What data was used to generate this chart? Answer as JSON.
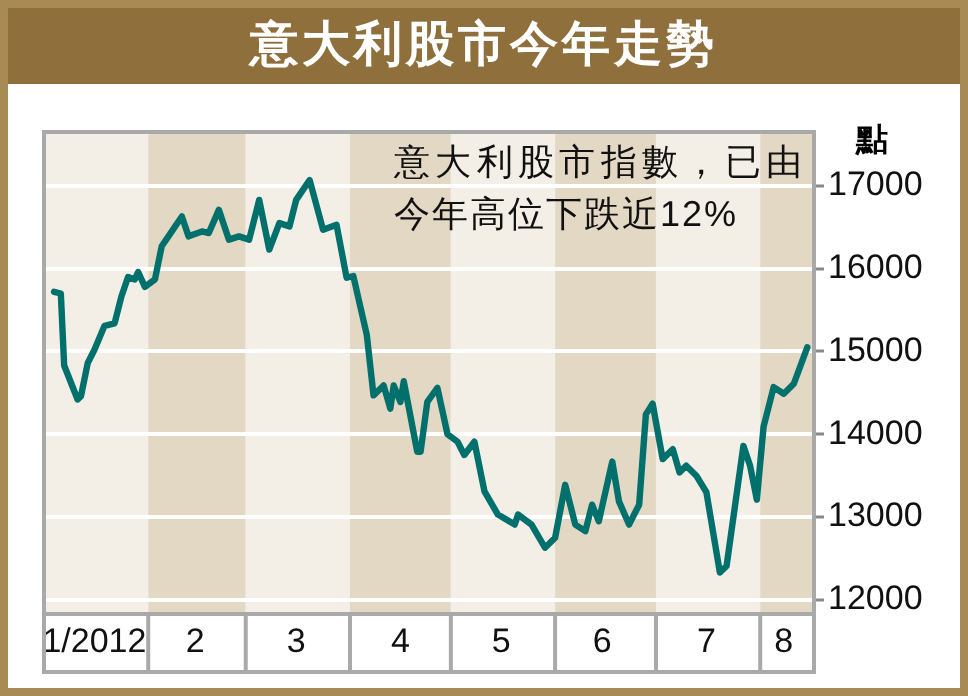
{
  "chart_data": {
    "type": "line",
    "title": "意大利股市今年走勢",
    "ylabel": "點",
    "annotations": [
      "意大利股市指數，已由今年高位下跌近12%"
    ],
    "x": [
      "2012-01-04",
      "2012-01-06",
      "2012-01-07",
      "2012-01-11",
      "2012-01-12",
      "2012-01-14",
      "2012-01-16",
      "2012-01-19",
      "2012-01-22",
      "2012-01-24",
      "2012-01-26",
      "2012-01-28",
      "2012-01-29",
      "2012-01-31",
      "2012-02-03",
      "2012-02-05",
      "2012-02-07",
      "2012-02-11",
      "2012-02-13",
      "2012-02-17",
      "2012-02-19",
      "2012-02-22",
      "2012-02-25",
      "2012-02-28",
      "2012-03-02",
      "2012-03-05",
      "2012-03-08",
      "2012-03-11",
      "2012-03-14",
      "2012-03-16",
      "2012-03-20",
      "2012-03-24",
      "2012-03-28",
      "2012-03-31",
      "2012-04-02",
      "2012-04-06",
      "2012-04-08",
      "2012-04-11",
      "2012-04-13",
      "2012-04-14",
      "2012-04-16",
      "2012-04-17",
      "2012-04-21",
      "2012-04-22",
      "2012-04-24",
      "2012-04-27",
      "2012-04-30",
      "2012-05-03",
      "2012-05-05",
      "2012-05-08",
      "2012-05-11",
      "2012-05-15",
      "2012-05-20",
      "2012-05-21",
      "2012-05-25",
      "2012-05-29",
      "2012-06-01",
      "2012-06-04",
      "2012-06-07",
      "2012-06-10",
      "2012-06-12",
      "2012-06-14",
      "2012-06-18",
      "2012-06-20",
      "2012-06-23",
      "2012-06-26",
      "2012-06-28",
      "2012-06-30",
      "2012-07-03",
      "2012-07-06",
      "2012-07-08",
      "2012-07-10",
      "2012-07-13",
      "2012-07-16",
      "2012-07-20",
      "2012-07-22",
      "2012-07-27",
      "2012-07-29",
      "2012-07-31",
      "2012-08-02",
      "2012-08-05",
      "2012-08-08",
      "2012-08-11",
      "2012-08-15"
    ],
    "values": [
      15720,
      15700,
      14830,
      14420,
      14460,
      14860,
      15020,
      15310,
      15340,
      15660,
      15900,
      15870,
      15960,
      15780,
      15870,
      16270,
      16390,
      16630,
      16390,
      16450,
      16430,
      16710,
      16350,
      16390,
      16350,
      16830,
      16230,
      16550,
      16510,
      16830,
      17070,
      16470,
      16530,
      15890,
      15910,
      15200,
      14470,
      14590,
      14310,
      14590,
      14390,
      14640,
      13790,
      13790,
      14390,
      14560,
      14000,
      13910,
      13750,
      13910,
      13310,
      13030,
      12910,
      13030,
      12910,
      12630,
      12750,
      13390,
      12910,
      12830,
      13150,
      12950,
      13670,
      13190,
      12910,
      13150,
      14240,
      14370,
      13700,
      13820,
      13540,
      13620,
      13500,
      13300,
      12330,
      12410,
      13860,
      13620,
      13210,
      14090,
      14570,
      14490,
      14610,
      15050
    ],
    "color": "#00706c",
    "marker": "none",
    "line_style": "solid",
    "xlim": [
      "2012-01-01",
      "2012-08-17"
    ],
    "xticks": [
      {
        "value": "2012-01-16",
        "label": "1/2012"
      },
      {
        "value": "2012-02-15",
        "label": "2"
      },
      {
        "value": "2012-03-16",
        "label": "3"
      },
      {
        "value": "2012-04-16",
        "label": "4"
      },
      {
        "value": "2012-05-16",
        "label": "5"
      },
      {
        "value": "2012-06-15",
        "label": "6"
      },
      {
        "value": "2012-07-16",
        "label": "7"
      },
      {
        "value": "2012-08-08",
        "label": "8"
      }
    ],
    "ylim": [
      11830,
      17650
    ],
    "yticks": [
      12000,
      13000,
      14000,
      15000,
      16000,
      17000
    ],
    "grid": "y",
    "bands": [
      {
        "axis": "x",
        "from": "2012-01-01",
        "to": "2012-02-01",
        "color": "#f3eee6"
      },
      {
        "axis": "x",
        "from": "2012-02-01",
        "to": "2012-03-01",
        "color": "#e3d8c4"
      },
      {
        "axis": "x",
        "from": "2012-03-01",
        "to": "2012-04-01",
        "color": "#f3eee6"
      },
      {
        "axis": "x",
        "from": "2012-04-01",
        "to": "2012-05-01",
        "color": "#e3d8c4"
      },
      {
        "axis": "x",
        "from": "2012-05-01",
        "to": "2012-06-01",
        "color": "#f3eee6"
      },
      {
        "axis": "x",
        "from": "2012-06-01",
        "to": "2012-07-01",
        "color": "#e3d8c4"
      },
      {
        "axis": "x",
        "from": "2012-07-01",
        "to": "2012-08-01",
        "color": "#f3eee6"
      },
      {
        "axis": "x",
        "from": "2012-08-01",
        "to": "2012-08-17",
        "color": "#e3d8c4"
      }
    ]
  }
}
